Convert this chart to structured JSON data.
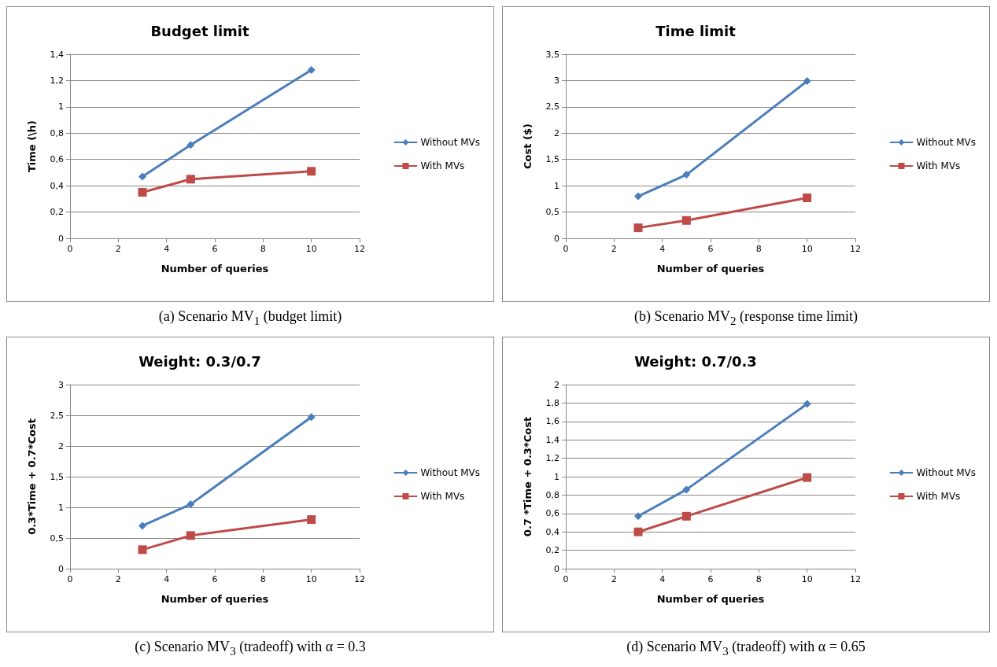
{
  "chart_data": [
    {
      "type": "line",
      "title": "Budget limit",
      "xlabel": "Number of queries",
      "ylabel": "Time (\\h)",
      "annotations": [
        "(a) Scenario MV$_{1}$ (budget limit)"
      ],
      "x": [
        3,
        5,
        10
      ],
      "xlim": [
        0,
        12
      ],
      "xticks": [
        0,
        2,
        4,
        6,
        8,
        10,
        12
      ],
      "ylim": [
        0,
        1.4
      ],
      "yticks": [
        0,
        {
          "value": 0.2,
          "label": "0,2"
        },
        {
          "value": 0.4,
          "label": "0,4"
        },
        {
          "value": 0.6,
          "label": "0,6"
        },
        {
          "value": 0.8,
          "label": "0,8"
        },
        1,
        {
          "value": 1.2,
          "label": "1,2"
        },
        {
          "value": 1.4,
          "label": "1,4"
        }
      ],
      "grid": "y",
      "legend": "right",
      "line_style": "solid",
      "series": [
        {
          "name": "Without MVs",
          "color": "#4a7ebb",
          "marker": "diamond",
          "values": [
            0.47,
            0.71,
            1.28
          ]
        },
        {
          "name": "With MVs",
          "color": "#be4b48",
          "marker": "square",
          "values": [
            0.35,
            0.45,
            0.51
          ]
        }
      ]
    },
    {
      "type": "line",
      "title": "Time limit",
      "xlabel": "Number of queries",
      "ylabel": "Cost ($)",
      "annotations": [
        "(b) Scenario MV$_{2}$ (response time limit)"
      ],
      "x": [
        3,
        5,
        10
      ],
      "xlim": [
        0,
        12
      ],
      "xticks": [
        0,
        2,
        4,
        6,
        8,
        10,
        12
      ],
      "ylim": [
        0,
        3.5
      ],
      "yticks": [
        0,
        {
          "value": 0.5,
          "label": "0,5"
        },
        1,
        {
          "value": 1.5,
          "label": "1,5"
        },
        2,
        {
          "value": 2.5,
          "label": "2,5"
        },
        3,
        {
          "value": 3.5,
          "label": "3,5"
        }
      ],
      "grid": "y",
      "legend": "right",
      "line_style": "solid",
      "series": [
        {
          "name": "Without MVs",
          "color": "#4a7ebb",
          "marker": "diamond",
          "values": [
            0.8,
            1.21,
            2.99
          ]
        },
        {
          "name": "With MVs",
          "color": "#be4b48",
          "marker": "square",
          "values": [
            0.2,
            0.34,
            0.77
          ]
        }
      ]
    },
    {
      "type": "line",
      "title": "Weight: 0.3/0.7",
      "xlabel": "Number of queries",
      "ylabel": "0.3*Time + 0.7*Cost",
      "annotations": [
        "(c) Scenario MV$_{3}$ (tradeoff) with α = 0.3"
      ],
      "x": [
        3,
        5,
        10
      ],
      "xlim": [
        0,
        12
      ],
      "xticks": [
        0,
        2,
        4,
        6,
        8,
        10,
        12
      ],
      "ylim": [
        0,
        3
      ],
      "yticks": [
        0,
        {
          "value": 0.5,
          "label": "0,5"
        },
        1,
        {
          "value": 1.5,
          "label": "1,5"
        },
        2,
        {
          "value": 2.5,
          "label": "2,5"
        },
        3
      ],
      "grid": "y",
      "legend": "right",
      "line_style": "solid",
      "series": [
        {
          "name": "Without MVs",
          "color": "#4a7ebb",
          "marker": "diamond",
          "values": [
            0.7,
            1.05,
            2.47
          ]
        },
        {
          "name": "With MVs",
          "color": "#be4b48",
          "marker": "square",
          "values": [
            0.31,
            0.54,
            0.8
          ]
        }
      ]
    },
    {
      "type": "line",
      "title": "Weight: 0.7/0.3",
      "xlabel": "Number of queries",
      "ylabel": "0.7 *Time + 0.3*Cost",
      "annotations": [
        "(d) Scenario MV$_{3}$ (tradeoff) with α = 0.65"
      ],
      "x": [
        3,
        5,
        10
      ],
      "xlim": [
        0,
        12
      ],
      "xticks": [
        0,
        2,
        4,
        6,
        8,
        10,
        12
      ],
      "ylim": [
        0,
        2
      ],
      "yticks": [
        0,
        {
          "value": 0.2,
          "label": "0,2"
        },
        {
          "value": 0.4,
          "label": "0,4"
        },
        {
          "value": 0.6,
          "label": "0,6"
        },
        {
          "value": 0.8,
          "label": "0,8"
        },
        1,
        {
          "value": 1.2,
          "label": "1,2"
        },
        {
          "value": 1.4,
          "label": "1,4"
        },
        {
          "value": 1.6,
          "label": "1,6"
        },
        {
          "value": 1.8,
          "label": "1,8"
        },
        2
      ],
      "grid": "y",
      "legend": "right",
      "line_style": "solid",
      "series": [
        {
          "name": "Without MVs",
          "color": "#4a7ebb",
          "marker": "diamond",
          "values": [
            0.57,
            0.86,
            1.79
          ]
        },
        {
          "name": "With MVs",
          "color": "#be4b48",
          "marker": "square",
          "values": [
            0.4,
            0.57,
            0.99
          ]
        }
      ]
    }
  ]
}
